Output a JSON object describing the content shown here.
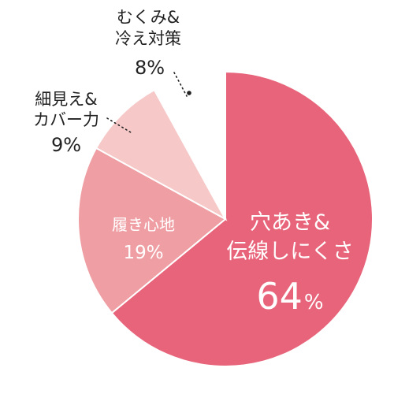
{
  "chart_data": {
    "type": "pie",
    "start": "top",
    "direction": "clockwise",
    "slices": [
      {
        "label_lines": [
          "穴あき&",
          "伝線しにくさ"
        ],
        "value": 64,
        "value_label": "64",
        "unit": "%",
        "color": "#e8647a"
      },
      {
        "label_lines": [
          "履き心地"
        ],
        "value": 19,
        "value_label": "19%",
        "color": "#ef9ea3"
      },
      {
        "label_lines": [
          "細見え&",
          "カバー力"
        ],
        "value": 9,
        "value_label": "9%",
        "color": "#f6c9c8"
      },
      {
        "label_lines": [
          "むくみ&",
          "冷え対策"
        ],
        "value": 8,
        "value_label": "8%",
        "color": "#ffffff"
      }
    ]
  }
}
